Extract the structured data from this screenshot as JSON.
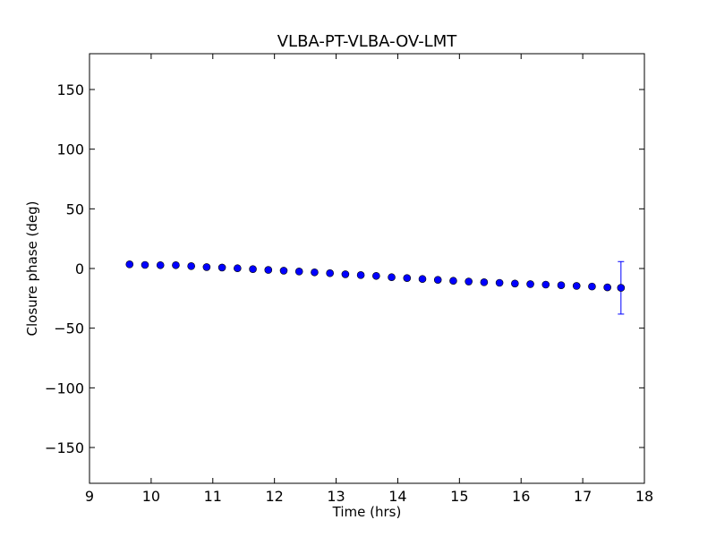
{
  "chart_data": {
    "type": "scatter",
    "title": "VLBA-PT-VLBA-OV-LMT",
    "xlabel": "Time (hrs)",
    "ylabel": "Closure phase (deg)",
    "xlim": [
      9,
      18
    ],
    "ylim": [
      -180,
      180
    ],
    "xticks": [
      9,
      10,
      11,
      12,
      13,
      14,
      15,
      16,
      17,
      18
    ],
    "xtick_labels": [
      "9",
      "10",
      "11",
      "12",
      "13",
      "14",
      "15",
      "16",
      "17",
      "18"
    ],
    "yticks": [
      -150,
      -100,
      -50,
      0,
      50,
      100,
      150
    ],
    "ytick_labels": [
      "−150",
      "−100",
      "−50",
      "0",
      "50",
      "100",
      "150"
    ],
    "grid": false,
    "marker_color": "#0000ff",
    "series": [
      {
        "x": [
          9.65,
          9.9,
          10.15,
          10.4,
          10.65,
          10.9,
          11.15,
          11.4,
          11.65,
          11.9,
          12.15,
          12.4,
          12.65,
          12.9,
          13.15,
          13.4,
          13.65,
          13.9,
          14.15,
          14.4,
          14.65,
          14.9,
          15.15,
          15.4,
          15.65,
          15.9,
          16.15,
          16.4,
          16.65,
          16.9,
          17.15,
          17.4,
          17.62
        ],
        "y": [
          3.5,
          3.0,
          2.8,
          2.8,
          2.0,
          1.2,
          0.8,
          0.2,
          -0.5,
          -1.2,
          -1.8,
          -2.5,
          -3.2,
          -3.9,
          -4.8,
          -5.5,
          -6.2,
          -7.3,
          -8.0,
          -8.8,
          -9.5,
          -10.3,
          -10.9,
          -11.5,
          -12.0,
          -12.6,
          -13.1,
          -13.5,
          -14.0,
          -14.6,
          -15.1,
          -15.8,
          -16.2
        ],
        "yerr": [
          0,
          0,
          0,
          0,
          0,
          0,
          0,
          0,
          0,
          0,
          0,
          0,
          0,
          0,
          0,
          0,
          0,
          0,
          0,
          0,
          0,
          0,
          0,
          0,
          0,
          0,
          0,
          0,
          0,
          0,
          0,
          0,
          22
        ]
      }
    ]
  }
}
